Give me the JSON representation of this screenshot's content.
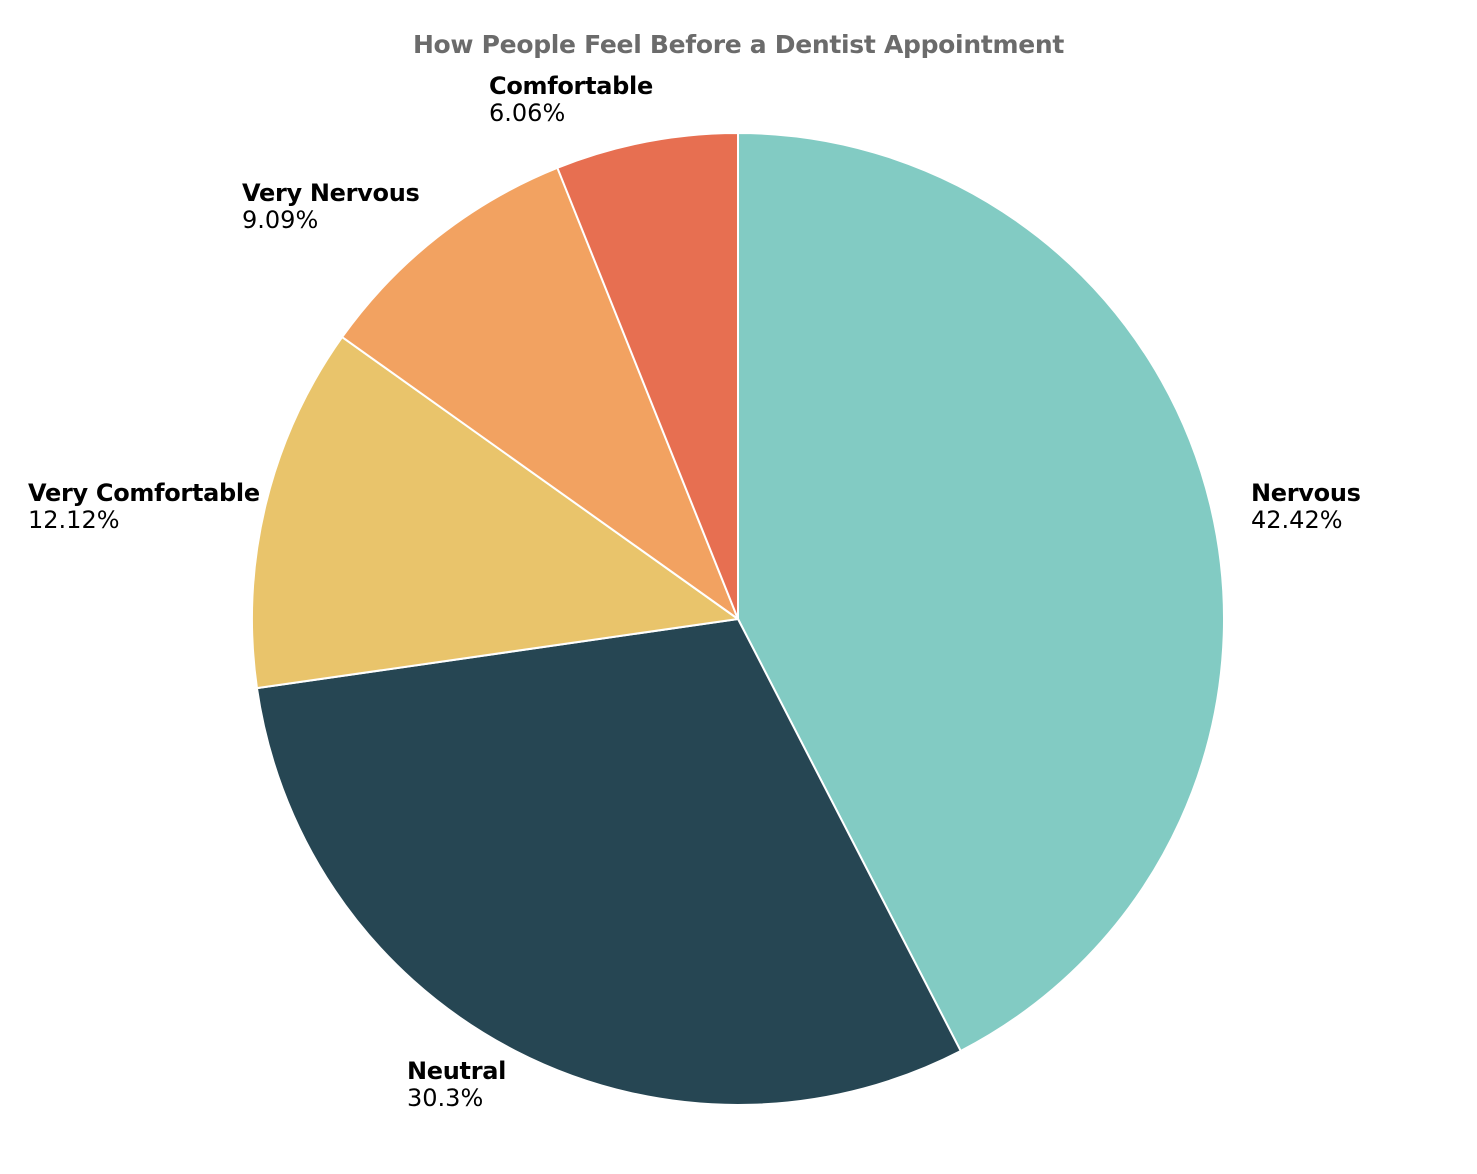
{
  "chart_data": {
    "type": "pie",
    "title": "How People Feel Before a Dentist Appointment",
    "start_angle": "top (12 o'clock)",
    "direction": "clockwise",
    "legend": "none (labels beside slices)",
    "slices": [
      {
        "label": "Nervous",
        "value": 42.42,
        "display": "42.42%",
        "color": "#82cbc3"
      },
      {
        "label": "Neutral",
        "value": 30.3,
        "display": "30.3%",
        "color": "#264653"
      },
      {
        "label": "Very Comfortable",
        "value": 12.12,
        "display": "12.12%",
        "color": "#e9c46b"
      },
      {
        "label": "Very Nervous",
        "value": 9.09,
        "display": "9.09%",
        "color": "#f2a261"
      },
      {
        "label": "Comfortable",
        "value": 6.06,
        "display": "6.06%",
        "color": "#e76f51"
      }
    ]
  }
}
